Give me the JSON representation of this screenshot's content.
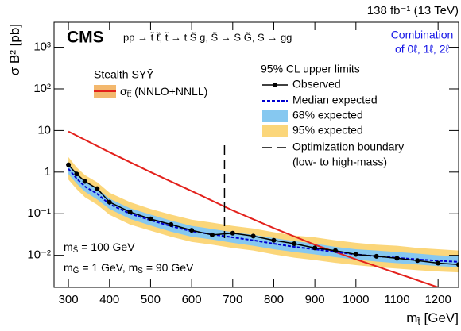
{
  "chart_data": {
    "type": "line",
    "lumi": "138 fb⁻¹ (13 TeV)",
    "title": "CMS",
    "subtitle": "pp → t̃ t̃̄, t̃ → t S̃ g, S̃ → S G̃, S → gg",
    "combination": [
      "Combination",
      "of 0ℓ, 1ℓ, 2ℓ"
    ],
    "ylabel": [
      "σ B² [pb]"
    ],
    "xlabel": [
      "m",
      "t̃",
      " [GeV]"
    ],
    "log_y": true,
    "xlim": [
      265,
      1250
    ],
    "ylim": [
      0.0017,
      4000
    ],
    "xticks": [
      300,
      400,
      500,
      600,
      700,
      800,
      900,
      1000,
      1100,
      1200
    ],
    "yticks": [
      {
        "value": 0.01,
        "label": "10⁻²"
      },
      {
        "value": 0.1,
        "label": "10⁻¹"
      },
      1,
      10,
      {
        "value": 100,
        "label": "10²"
      },
      {
        "value": 1000,
        "label": "10³"
      }
    ],
    "x": [
      300,
      320,
      340,
      370,
      400,
      450,
      500,
      550,
      600,
      650,
      700,
      750,
      800,
      850,
      900,
      950,
      1000,
      1050,
      1100,
      1150,
      1200,
      1250
    ],
    "legend_title": "95% CL upper limits",
    "series": [
      {
        "name": "Observed",
        "color": "#000000",
        "values": [
          1.5,
          0.9,
          0.6,
          0.4,
          0.19,
          0.11,
          0.075,
          0.055,
          0.04,
          0.031,
          0.034,
          0.029,
          0.023,
          0.019,
          0.015,
          0.013,
          0.0105,
          0.0095,
          0.0085,
          0.0075,
          0.0065,
          0.006
        ]
      },
      {
        "name": "Median expected",
        "color": "#0000d0",
        "values": [
          1.2,
          0.7,
          0.45,
          0.3,
          0.17,
          0.1,
          0.07,
          0.05,
          0.038,
          0.032,
          0.027,
          0.023,
          0.019,
          0.016,
          0.014,
          0.012,
          0.0105,
          0.0095,
          0.0087,
          0.008,
          0.0074,
          0.007
        ]
      },
      {
        "name": "68% expected",
        "color": "#86c8f0",
        "lower": [
          0.9,
          0.53,
          0.34,
          0.22,
          0.13,
          0.075,
          0.052,
          0.037,
          0.028,
          0.024,
          0.02,
          0.017,
          0.014,
          0.012,
          0.0105,
          0.009,
          0.0079,
          0.0071,
          0.0065,
          0.006,
          0.0055,
          0.0052
        ],
        "upper": [
          1.6,
          0.95,
          0.6,
          0.4,
          0.23,
          0.135,
          0.095,
          0.068,
          0.051,
          0.043,
          0.036,
          0.031,
          0.026,
          0.022,
          0.019,
          0.016,
          0.014,
          0.013,
          0.012,
          0.011,
          0.01,
          0.0095
        ]
      },
      {
        "name": "95% expected",
        "color": "#fbd67a",
        "lower": [
          0.66,
          0.39,
          0.25,
          0.165,
          0.094,
          0.055,
          0.039,
          0.028,
          0.021,
          0.018,
          0.015,
          0.013,
          0.0105,
          0.0088,
          0.0077,
          0.0066,
          0.0058,
          0.0052,
          0.0048,
          0.0044,
          0.0041,
          0.0039
        ],
        "upper": [
          2.3,
          1.3,
          0.85,
          0.57,
          0.32,
          0.19,
          0.13,
          0.095,
          0.072,
          0.061,
          0.051,
          0.044,
          0.036,
          0.03,
          0.027,
          0.023,
          0.02,
          0.018,
          0.017,
          0.015,
          0.014,
          0.013
        ]
      }
    ],
    "theory": {
      "title": "Stealth SYȲ",
      "label": [
        "σ",
        "t̃t̃",
        " (NNLO+NNLL)"
      ],
      "color": "#e3211c",
      "band_color": "#f3b86e",
      "x": [
        300,
        400,
        500,
        600,
        700,
        800,
        900,
        1000,
        1100,
        1200
      ],
      "values": [
        9.5,
        3,
        1,
        0.35,
        0.12,
        0.045,
        0.018,
        0.008,
        0.0037,
        0.0017
      ]
    },
    "boundary": {
      "x": 680,
      "name": "Optimization boundary",
      "note": "(low- to high-mass)"
    },
    "annotations": [
      [
        "m",
        "S̃",
        " = 100 GeV"
      ],
      [
        "m",
        "G̃",
        " = 1 GeV, m",
        "S",
        " = 90 GeV"
      ]
    ]
  }
}
